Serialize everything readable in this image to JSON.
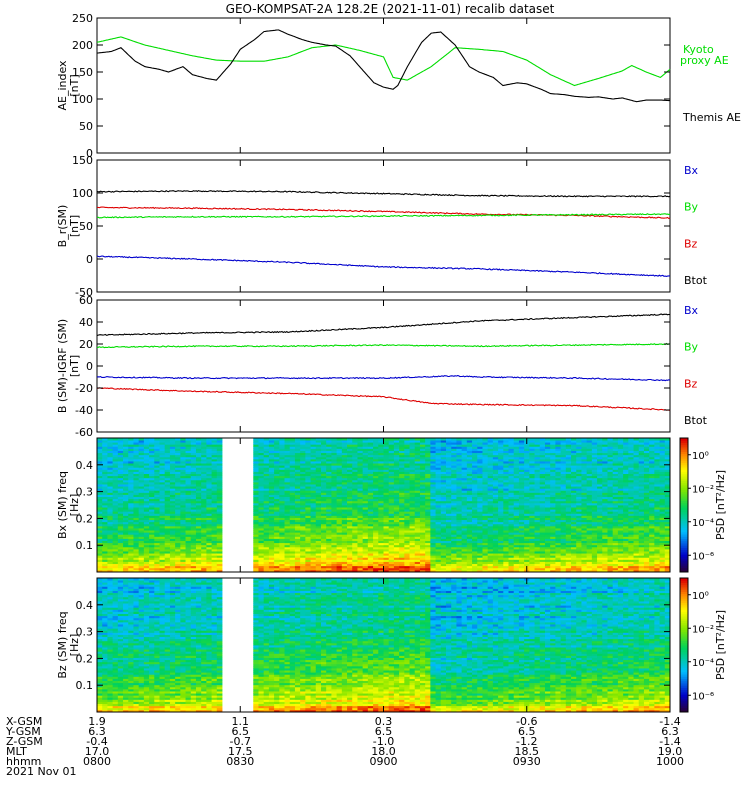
{
  "figure": {
    "title": "GEO-KOMPSAT-2A 128.2E (2021-11-01) recalib dataset",
    "date_label": "2021 Nov 01",
    "colors": {
      "black": "#000000",
      "green": "#00dd00",
      "red": "#dd0000",
      "blue": "#0000cc"
    }
  },
  "chart_data": [
    {
      "type": "line",
      "ylabel": "AE_index [nT]",
      "ylim": [
        0,
        250
      ],
      "yticks": [
        "0",
        "50",
        "100",
        "150",
        "200",
        "250"
      ],
      "xlim": [
        0,
        120
      ],
      "series": [
        {
          "name": "Kyoto proxy AE",
          "label_lines": [
            "Kyoto",
            "proxy AE"
          ],
          "color": "#00dd00",
          "x": [
            0,
            5,
            10,
            15,
            20,
            25,
            30,
            35,
            40,
            45,
            50,
            55,
            60,
            62,
            65,
            70,
            75,
            80,
            85,
            90,
            95,
            100,
            105,
            110,
            112,
            115,
            118,
            120
          ],
          "y": [
            205,
            215,
            200,
            190,
            180,
            172,
            170,
            170,
            178,
            195,
            200,
            190,
            178,
            140,
            135,
            160,
            195,
            192,
            188,
            172,
            145,
            125,
            138,
            152,
            162,
            150,
            140,
            155
          ]
        },
        {
          "name": "Themis AE",
          "label_lines": [
            "Themis AE"
          ],
          "color": "#000000",
          "x": [
            0,
            3,
            5,
            8,
            10,
            13,
            15,
            18,
            20,
            23,
            25,
            28,
            30,
            33,
            35,
            38,
            40,
            43,
            45,
            48,
            50,
            53,
            55,
            58,
            60,
            62,
            63,
            65,
            68,
            70,
            72,
            75,
            78,
            80,
            83,
            85,
            88,
            90,
            93,
            95,
            98,
            100,
            103,
            105,
            108,
            110,
            113,
            115,
            118,
            120
          ],
          "y": [
            185,
            188,
            195,
            170,
            160,
            155,
            150,
            160,
            145,
            138,
            135,
            165,
            192,
            210,
            225,
            228,
            220,
            210,
            205,
            200,
            198,
            180,
            160,
            130,
            122,
            118,
            125,
            160,
            205,
            222,
            224,
            200,
            160,
            150,
            140,
            125,
            130,
            128,
            118,
            110,
            108,
            105,
            103,
            104,
            100,
            102,
            95,
            98,
            98,
            97
          ]
        }
      ],
      "labels": [
        "Kyoto",
        "proxy AE",
        "Themis AE"
      ]
    },
    {
      "type": "line",
      "ylabel": "B_r(SM) [nT]",
      "ylim": [
        -50,
        150
      ],
      "yticks": [
        "-50",
        "0",
        "50",
        "100",
        "150"
      ],
      "xlim": [
        0,
        120
      ],
      "series": [
        {
          "name": "Btot",
          "color": "#000000",
          "x": [
            0,
            20,
            40,
            60,
            80,
            100,
            120
          ],
          "y": [
            102,
            103,
            102,
            99,
            96,
            95,
            95
          ]
        },
        {
          "name": "Bx",
          "color": "#dd0000",
          "x": [
            0,
            20,
            40,
            60,
            80,
            100,
            120
          ],
          "y": [
            78,
            77,
            75,
            72,
            68,
            66,
            62
          ]
        },
        {
          "name": "By",
          "color": "#00dd00",
          "x": [
            0,
            20,
            40,
            60,
            80,
            100,
            120
          ],
          "y": [
            63,
            64,
            64,
            65,
            66,
            67,
            68
          ]
        },
        {
          "name": "Bz",
          "color": "#0000cc",
          "x": [
            0,
            20,
            40,
            60,
            80,
            100,
            120
          ],
          "y": [
            4,
            0,
            -5,
            -12,
            -15,
            -20,
            -26
          ]
        }
      ],
      "labels": [
        "Bx",
        "By",
        "Bz",
        "Btot"
      ],
      "label_colors": [
        "#0000cc",
        "#00dd00",
        "#dd0000",
        "#000000"
      ]
    },
    {
      "type": "line",
      "ylabel": "B (SM)-IGRF (SM) [nT]",
      "ylim": [
        -60,
        60
      ],
      "yticks": [
        "-60",
        "-40",
        "-20",
        "0",
        "20",
        "40",
        "60"
      ],
      "xlim": [
        0,
        120
      ],
      "series": [
        {
          "name": "Btot",
          "color": "#000000",
          "x": [
            0,
            20,
            40,
            60,
            70,
            80,
            100,
            120
          ],
          "y": [
            28,
            30,
            31,
            35,
            38,
            41,
            44,
            47
          ]
        },
        {
          "name": "By",
          "color": "#00dd00",
          "x": [
            0,
            20,
            40,
            60,
            80,
            100,
            120
          ],
          "y": [
            17,
            18,
            18,
            19,
            18,
            19,
            20
          ]
        },
        {
          "name": "Bx",
          "color": "#0000cc",
          "x": [
            0,
            20,
            40,
            60,
            75,
            80,
            100,
            120
          ],
          "y": [
            -10,
            -11,
            -11,
            -11,
            -9,
            -10,
            -11,
            -13
          ]
        },
        {
          "name": "Bz",
          "color": "#dd0000",
          "x": [
            0,
            20,
            40,
            60,
            70,
            80,
            100,
            120
          ],
          "y": [
            -20,
            -23,
            -25,
            -28,
            -34,
            -35,
            -36,
            -40
          ]
        }
      ],
      "labels": [
        "Bx",
        "By",
        "Bz",
        "Btot"
      ],
      "label_colors": [
        "#0000cc",
        "#00dd00",
        "#dd0000",
        "#000000"
      ]
    },
    {
      "type": "heatmap",
      "ylabel": "Bx (SM) freq [Hz]",
      "ylim": [
        0,
        0.5
      ],
      "yticks": [
        "0.1",
        "0.2",
        "0.3",
        "0.4"
      ],
      "xlim": [
        0,
        120
      ],
      "gap": [
        26,
        33
      ],
      "colorbar": {
        "label": "PSD [nT²/Hz]",
        "ticks": [
          "10⁰",
          "10⁻²",
          "10⁻⁴",
          "10⁻⁶"
        ],
        "tick_exponents": [
          0,
          -2,
          -4,
          -6
        ],
        "range_exp": [
          -7,
          1
        ]
      },
      "psd_profile_exp": {
        "freq": [
          0.0,
          0.02,
          0.05,
          0.1,
          0.15,
          0.2,
          0.3,
          0.4,
          0.5
        ],
        "log10_psd": [
          0.2,
          -0.5,
          -1.5,
          -2.2,
          -2.8,
          -3.2,
          -3.7,
          -4.0,
          -4.1
        ]
      }
    },
    {
      "type": "heatmap",
      "ylabel": "Bz (SM) freq [Hz]",
      "ylim": [
        0,
        0.5
      ],
      "yticks": [
        "0.1",
        "0.2",
        "0.3",
        "0.4"
      ],
      "xlim": [
        0,
        120
      ],
      "gap": [
        26,
        33
      ],
      "colorbar": {
        "label": "PSD [nT²/Hz]",
        "ticks": [
          "10⁰",
          "10⁻²",
          "10⁻⁴",
          "10⁻⁶"
        ],
        "tick_exponents": [
          0,
          -2,
          -4,
          -6
        ],
        "range_exp": [
          -7,
          1
        ]
      },
      "psd_profile_exp": {
        "freq": [
          0.0,
          0.02,
          0.05,
          0.1,
          0.15,
          0.2,
          0.3,
          0.4,
          0.5
        ],
        "log10_psd": [
          0.3,
          -0.8,
          -1.8,
          -2.4,
          -2.9,
          -3.3,
          -3.8,
          -4.0,
          -4.2
        ]
      }
    }
  ],
  "x_axis": {
    "row_labels": [
      "X-GSM",
      "Y-GSM",
      "Z-GSM",
      "MLT",
      "hhmm"
    ],
    "columns": [
      {
        "x": 0,
        "values": [
          "1.9",
          "6.3",
          "-0.4",
          "17.0",
          "0800"
        ]
      },
      {
        "x": 30,
        "values": [
          "1.1",
          "6.5",
          "-0.7",
          "17.5",
          "0830"
        ]
      },
      {
        "x": 60,
        "values": [
          "0.3",
          "6.5",
          "-1.0",
          "18.0",
          "0900"
        ]
      },
      {
        "x": 90,
        "values": [
          "-0.6",
          "6.5",
          "-1.2",
          "18.5",
          "0930"
        ]
      },
      {
        "x": 120,
        "values": [
          "-1.4",
          "6.3",
          "-1.4",
          "19.0",
          "1000"
        ]
      }
    ]
  }
}
